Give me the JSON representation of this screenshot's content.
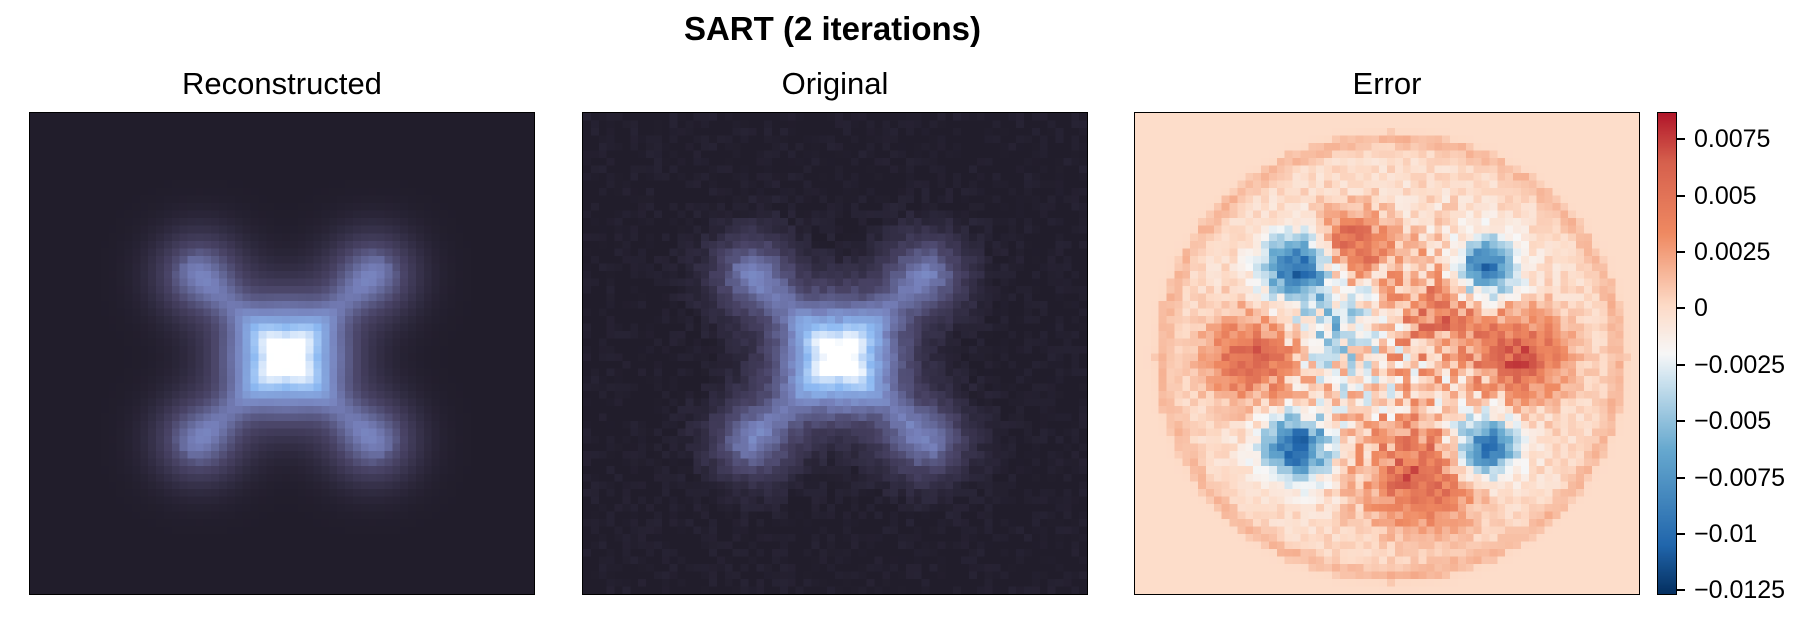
{
  "figure": {
    "suptitle": "SART (2 iterations)"
  },
  "panels": [
    {
      "title": "Reconstructed"
    },
    {
      "title": "Original"
    },
    {
      "title": "Error"
    }
  ],
  "colorbar": {
    "cmap": "RdBu_r",
    "range": [
      -0.0127,
      0.0087
    ],
    "ticks": [
      {
        "value": 0.0075,
        "label": "0.0075"
      },
      {
        "value": 0.005,
        "label": "0.005"
      },
      {
        "value": 0.0025,
        "label": "0.0025"
      },
      {
        "value": 0,
        "label": "0"
      },
      {
        "value": -0.0025,
        "label": "−0.0025"
      },
      {
        "value": -0.005,
        "label": "−0.005"
      },
      {
        "value": -0.0075,
        "label": "−0.0075"
      },
      {
        "value": -0.01,
        "label": "−0.01"
      },
      {
        "value": -0.0125,
        "label": "−0.0125"
      }
    ]
  },
  "chart_data": {
    "type": "heatmap",
    "title": "SART (2 iterations)",
    "images": [
      {
        "name": "Reconstructed",
        "grid": [
          64,
          64
        ],
        "cmap": "dark-blue-white",
        "axes": "off",
        "description_of_values": "central bright blob with four fainter diagonal lobes"
      },
      {
        "name": "Original",
        "grid": [
          64,
          64
        ],
        "cmap": "dark-blue-white",
        "axes": "off"
      },
      {
        "name": "Error",
        "grid": [
          64,
          64
        ],
        "cmap": "RdBu_r",
        "axes": "off",
        "vmin": -0.0127,
        "vmax": 0.0087
      }
    ]
  }
}
